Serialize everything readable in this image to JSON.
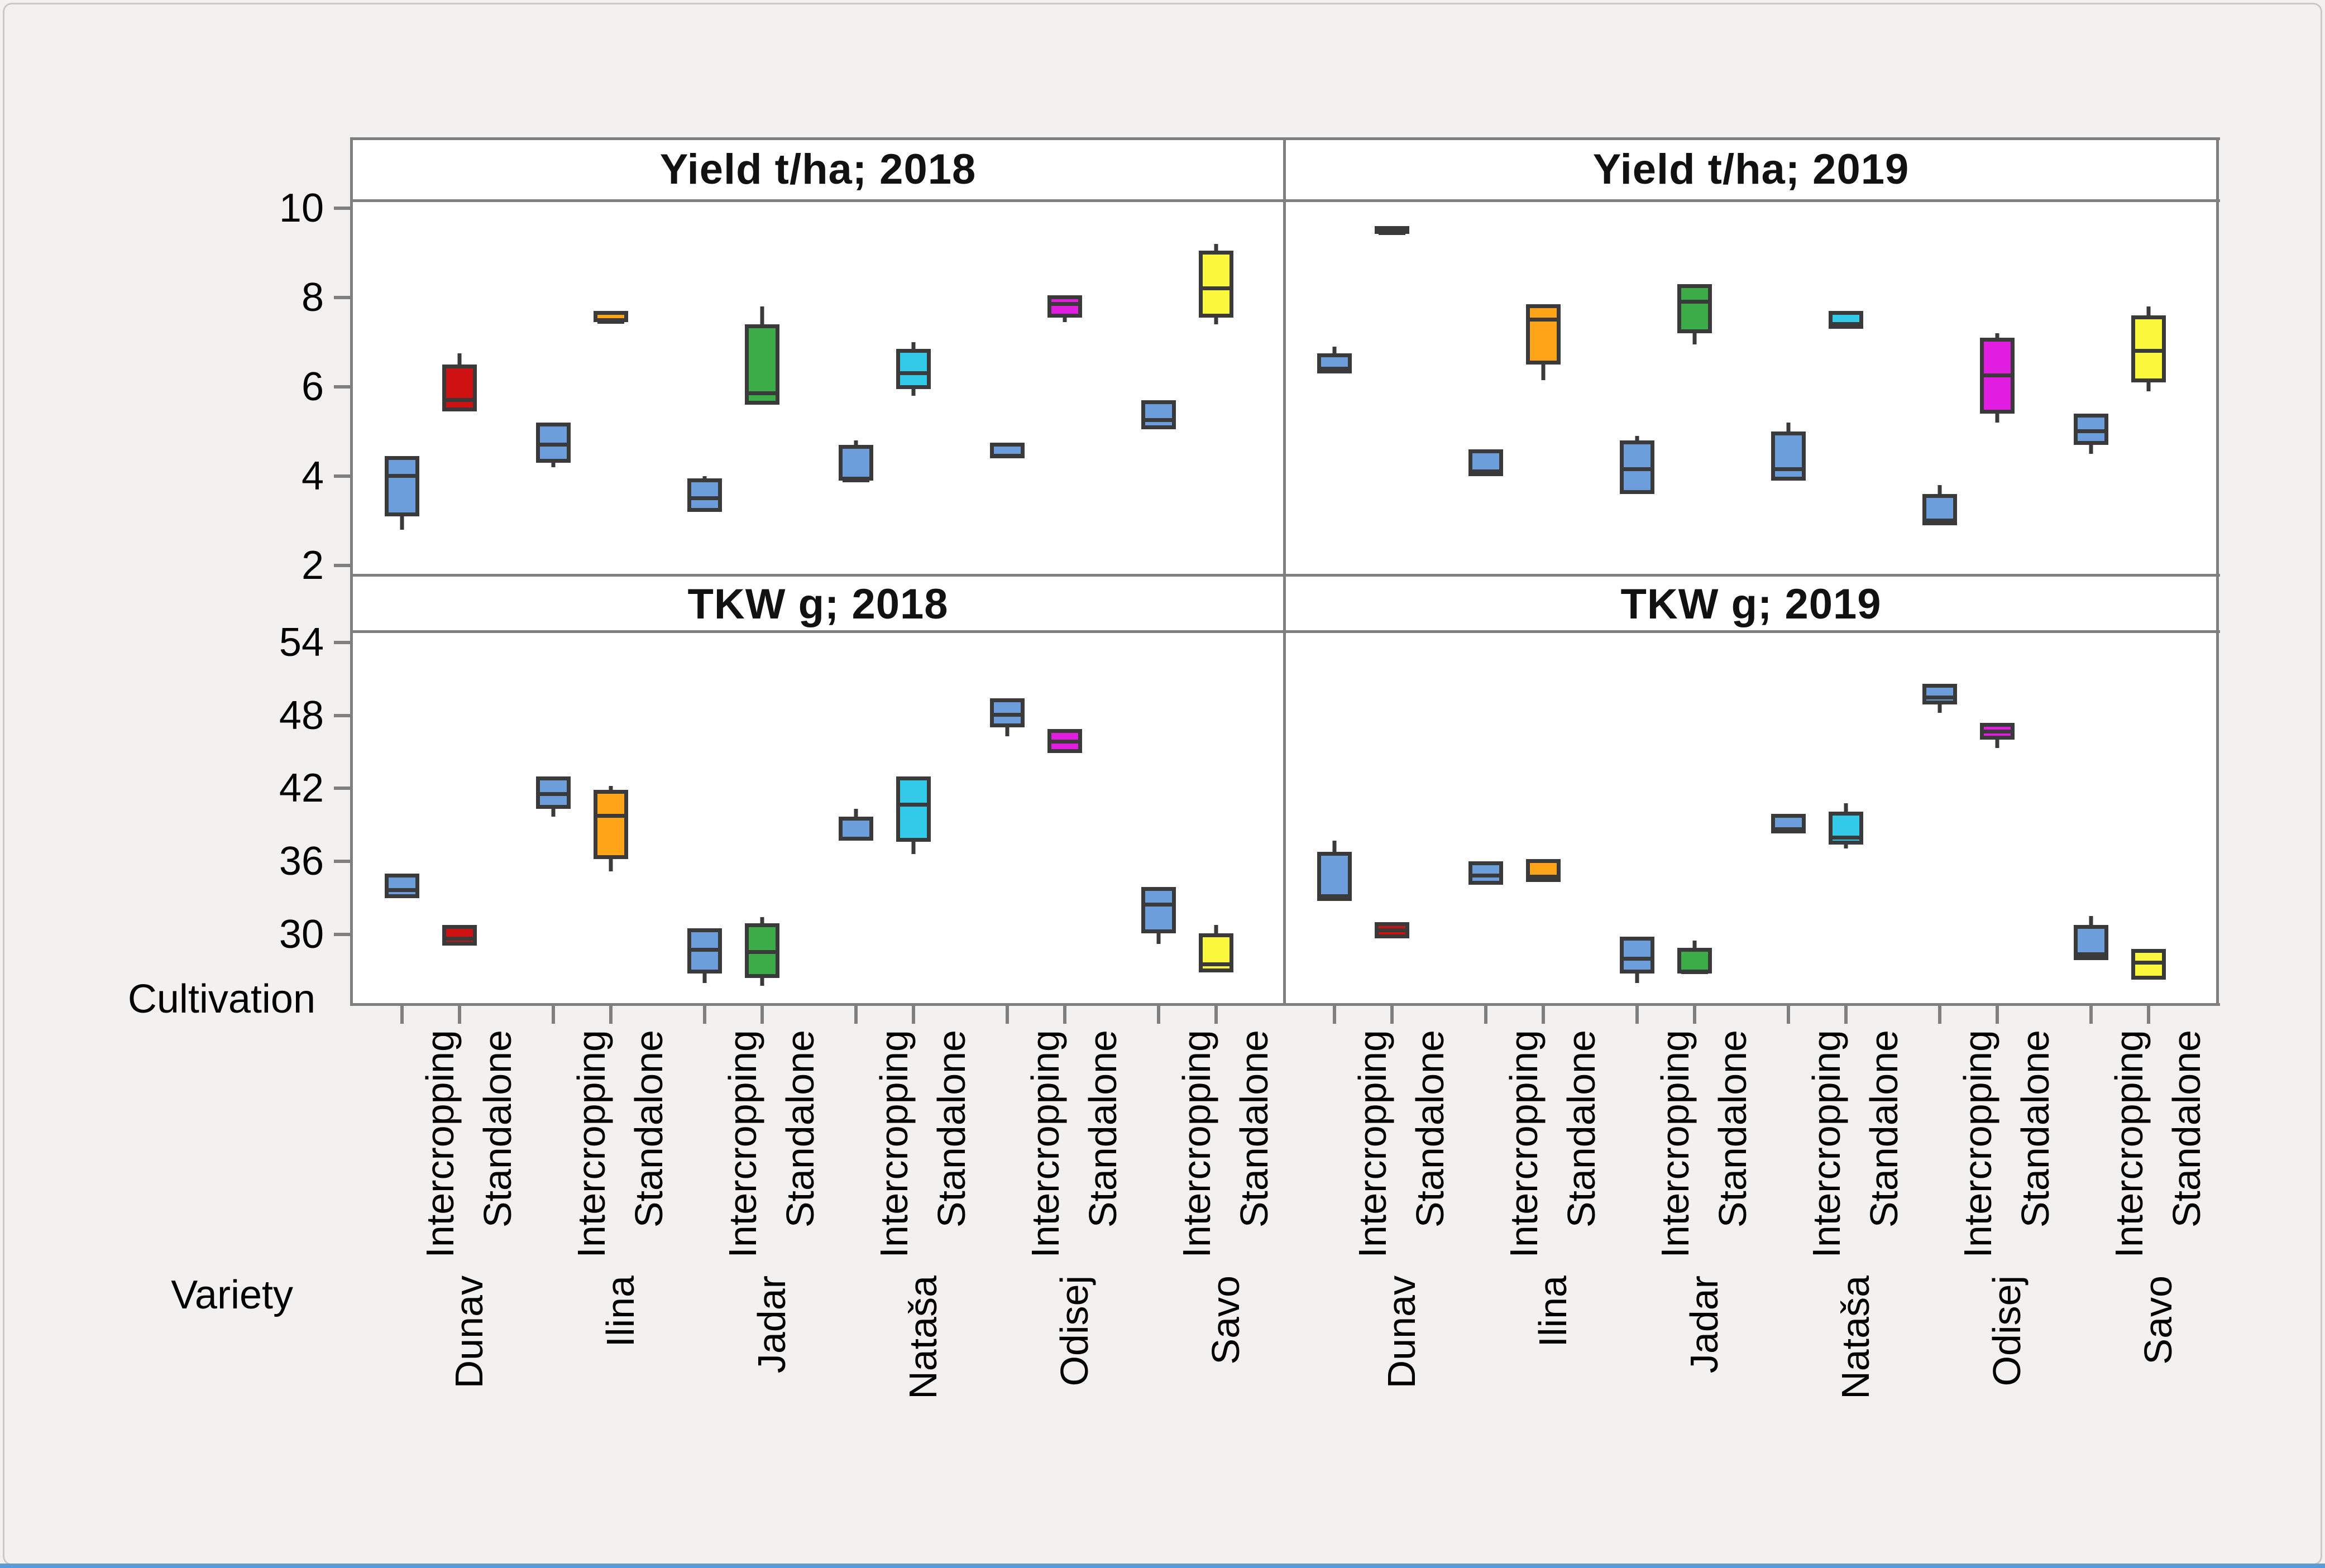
{
  "figure": {
    "background": "#f2f1ef",
    "plot_background": "#ffffff",
    "panel_border_color": "#7f7f7f",
    "box_outline_color": "#3a3a3a",
    "accent_bottom_bar_color": "#5b9bd5"
  },
  "axis": {
    "cultivation_label": "Cultivation",
    "variety_label": "Variety",
    "cultivations": [
      "Intercropping",
      "Standalone"
    ],
    "varieties": [
      "Dunav",
      "Ilina",
      "Jadar",
      "Nataša",
      "Odisej",
      "Savo"
    ],
    "yield_ticks": [
      10,
      8,
      6,
      4,
      2
    ],
    "tkw_ticks": [
      54,
      48,
      42,
      36,
      30
    ]
  },
  "colors": {
    "intercropping": "#6c9edc",
    "dunav": "#ce1212",
    "dunav_flat_dark": "#3a3a3a",
    "ilina": "#ffa319",
    "jadar": "#3bac47",
    "natasa": "#33c9e8",
    "odisej": "#e01de0",
    "savo": "#fbf73c"
  },
  "chart_data": [
    {
      "type": "box",
      "title": "Yield t/ha; 2018",
      "ylabel": "Yield t/ha",
      "year": "2018",
      "ylim": [
        1.76,
        10.15
      ],
      "grid": false,
      "items": [
        {
          "variety": "Dunav",
          "cultivation": "Intercropping",
          "color": "#6c9edc",
          "lo": 2.8,
          "q1": 3.1,
          "med": 4.1,
          "q3": 4.45,
          "hi": 4.45
        },
        {
          "variety": "Dunav",
          "cultivation": "Standalone",
          "color": "#ce1212",
          "lo": 5.45,
          "q1": 5.45,
          "med": 5.8,
          "q3": 6.5,
          "hi": 6.75
        },
        {
          "variety": "Ilina",
          "cultivation": "Intercropping",
          "color": "#6c9edc",
          "lo": 4.2,
          "q1": 4.3,
          "med": 4.8,
          "q3": 5.2,
          "hi": 5.2
        },
        {
          "variety": "Ilina",
          "cultivation": "Standalone",
          "color": "#ffa319",
          "lo": 7.45,
          "q1": 7.45,
          "med": 7.55,
          "q3": 7.7,
          "hi": 7.7
        },
        {
          "variety": "Jadar",
          "cultivation": "Intercropping",
          "color": "#6c9edc",
          "lo": 3.2,
          "q1": 3.2,
          "med": 3.6,
          "q3": 3.95,
          "hi": 4.0
        },
        {
          "variety": "Jadar",
          "cultivation": "Standalone",
          "color": "#3bac47",
          "lo": 5.6,
          "q1": 5.6,
          "med": 5.95,
          "q3": 7.4,
          "hi": 7.8
        },
        {
          "variety": "Nataša",
          "cultivation": "Intercropping",
          "color": "#6c9edc",
          "lo": 3.9,
          "q1": 3.9,
          "med": 4.0,
          "q3": 4.7,
          "hi": 4.8
        },
        {
          "variety": "Nataša",
          "cultivation": "Standalone",
          "color": "#33c9e8",
          "lo": 5.8,
          "q1": 5.95,
          "med": 6.4,
          "q3": 6.85,
          "hi": 7.0
        },
        {
          "variety": "Odisej",
          "cultivation": "Intercropping",
          "color": "#6c9edc",
          "lo": 4.4,
          "q1": 4.4,
          "med": 4.55,
          "q3": 4.75,
          "hi": 4.75
        },
        {
          "variety": "Odisej",
          "cultivation": "Standalone",
          "color": "#e01de0",
          "lo": 7.45,
          "q1": 7.55,
          "med": 7.95,
          "q3": 8.05,
          "hi": 8.05
        },
        {
          "variety": "Savo",
          "cultivation": "Intercropping",
          "color": "#6c9edc",
          "lo": 5.05,
          "q1": 5.05,
          "med": 5.35,
          "q3": 5.7,
          "hi": 5.7
        },
        {
          "variety": "Savo",
          "cultivation": "Standalone",
          "color": "#fbf73c",
          "lo": 7.4,
          "q1": 7.55,
          "med": 8.3,
          "q3": 9.05,
          "hi": 9.2
        }
      ]
    },
    {
      "type": "box",
      "title": "Yield t/ha; 2019",
      "ylabel": "Yield t/ha",
      "year": "2019",
      "ylim": [
        1.76,
        10.15
      ],
      "grid": false,
      "items": [
        {
          "variety": "Dunav",
          "cultivation": "Intercropping",
          "color": "#6c9edc",
          "lo": 6.3,
          "q1": 6.3,
          "med": 6.5,
          "q3": 6.75,
          "hi": 6.9
        },
        {
          "variety": "Dunav",
          "cultivation": "Standalone",
          "color": "#3a3a3a",
          "lo": 9.45,
          "q1": 9.45,
          "med": 9.52,
          "q3": 9.6,
          "hi": 9.6
        },
        {
          "variety": "Ilina",
          "cultivation": "Intercropping",
          "color": "#6c9edc",
          "lo": 4.0,
          "q1": 4.0,
          "med": 4.2,
          "q3": 4.6,
          "hi": 4.6
        },
        {
          "variety": "Ilina",
          "cultivation": "Standalone",
          "color": "#ffa319",
          "lo": 6.15,
          "q1": 6.5,
          "med": 7.6,
          "q3": 7.85,
          "hi": 7.85
        },
        {
          "variety": "Jadar",
          "cultivation": "Intercropping",
          "color": "#6c9edc",
          "lo": 3.6,
          "q1": 3.6,
          "med": 4.25,
          "q3": 4.8,
          "hi": 4.9
        },
        {
          "variety": "Jadar",
          "cultivation": "Standalone",
          "color": "#3bac47",
          "lo": 6.95,
          "q1": 7.2,
          "med": 8.0,
          "q3": 8.3,
          "hi": 8.3
        },
        {
          "variety": "Nataša",
          "cultivation": "Intercropping",
          "color": "#6c9edc",
          "lo": 3.9,
          "q1": 3.9,
          "med": 4.25,
          "q3": 5.0,
          "hi": 5.2
        },
        {
          "variety": "Nataša",
          "cultivation": "Standalone",
          "color": "#33c9e8",
          "lo": 7.3,
          "q1": 7.3,
          "med": 7.5,
          "q3": 7.7,
          "hi": 7.7
        },
        {
          "variety": "Odisej",
          "cultivation": "Intercropping",
          "color": "#6c9edc",
          "lo": 2.9,
          "q1": 2.9,
          "med": 3.1,
          "q3": 3.6,
          "hi": 3.8
        },
        {
          "variety": "Odisej",
          "cultivation": "Standalone",
          "color": "#e01de0",
          "lo": 5.2,
          "q1": 5.4,
          "med": 6.35,
          "q3": 7.1,
          "hi": 7.2
        },
        {
          "variety": "Savo",
          "cultivation": "Intercropping",
          "color": "#6c9edc",
          "lo": 4.5,
          "q1": 4.7,
          "med": 5.1,
          "q3": 5.4,
          "hi": 5.4
        },
        {
          "variety": "Savo",
          "cultivation": "Standalone",
          "color": "#fbf73c",
          "lo": 5.9,
          "q1": 6.1,
          "med": 6.9,
          "q3": 7.6,
          "hi": 7.8
        }
      ]
    },
    {
      "type": "box",
      "title": "TKW g; 2018",
      "ylabel": "TKW g",
      "year": "2018",
      "ylim": [
        24.2,
        54.8
      ],
      "grid": false,
      "items": [
        {
          "variety": "Dunav",
          "cultivation": "Intercropping",
          "color": "#6c9edc",
          "lo": 33.0,
          "q1": 33.0,
          "med": 34.0,
          "q3": 35.0,
          "hi": 35.0
        },
        {
          "variety": "Dunav",
          "cultivation": "Standalone",
          "color": "#ce1212",
          "lo": 29.1,
          "q1": 29.1,
          "med": 30.0,
          "q3": 30.8,
          "hi": 30.8
        },
        {
          "variety": "Ilina",
          "cultivation": "Intercropping",
          "color": "#6c9edc",
          "lo": 39.7,
          "q1": 40.3,
          "med": 41.9,
          "q3": 43.0,
          "hi": 43.0
        },
        {
          "variety": "Ilina",
          "cultivation": "Standalone",
          "color": "#ffa319",
          "lo": 35.2,
          "q1": 36.2,
          "med": 40.1,
          "q3": 41.9,
          "hi": 42.2
        },
        {
          "variety": "Jadar",
          "cultivation": "Intercropping",
          "color": "#6c9edc",
          "lo": 26.0,
          "q1": 26.8,
          "med": 29.1,
          "q3": 30.5,
          "hi": 30.5
        },
        {
          "variety": "Jadar",
          "cultivation": "Standalone",
          "color": "#3bac47",
          "lo": 25.8,
          "q1": 26.4,
          "med": 28.9,
          "q3": 30.9,
          "hi": 31.4
        },
        {
          "variety": "Nataša",
          "cultivation": "Intercropping",
          "color": "#6c9edc",
          "lo": 37.7,
          "q1": 37.7,
          "med": 38.2,
          "q3": 39.7,
          "hi": 40.3
        },
        {
          "variety": "Nataša",
          "cultivation": "Standalone",
          "color": "#33c9e8",
          "lo": 36.6,
          "q1": 37.6,
          "med": 41.0,
          "q3": 43.0,
          "hi": 43.0
        },
        {
          "variety": "Odisej",
          "cultivation": "Intercropping",
          "color": "#6c9edc",
          "lo": 46.3,
          "q1": 47.0,
          "med": 48.4,
          "q3": 49.4,
          "hi": 49.4
        },
        {
          "variety": "Odisej",
          "cultivation": "Standalone",
          "color": "#e01de0",
          "lo": 44.9,
          "q1": 44.9,
          "med": 46.2,
          "q3": 46.9,
          "hi": 46.9
        },
        {
          "variety": "Savo",
          "cultivation": "Intercropping",
          "color": "#6c9edc",
          "lo": 29.2,
          "q1": 30.1,
          "med": 32.8,
          "q3": 33.9,
          "hi": 33.9
        },
        {
          "variety": "Savo",
          "cultivation": "Standalone",
          "color": "#fbf73c",
          "lo": 26.9,
          "q1": 26.9,
          "med": 27.9,
          "q3": 30.1,
          "hi": 30.8
        }
      ]
    },
    {
      "type": "box",
      "title": "TKW g; 2019",
      "ylabel": "TKW g",
      "year": "2019",
      "ylim": [
        24.2,
        54.8
      ],
      "grid": false,
      "items": [
        {
          "variety": "Dunav",
          "cultivation": "Intercropping",
          "color": "#6c9edc",
          "lo": 32.75,
          "q1": 32.75,
          "med": 33.5,
          "q3": 36.8,
          "hi": 37.7
        },
        {
          "variety": "Dunav",
          "cultivation": "Standalone",
          "color": "#ce1212",
          "lo": 29.7,
          "q1": 29.7,
          "med": 30.7,
          "q3": 31.0,
          "hi": 31.0
        },
        {
          "variety": "Ilina",
          "cultivation": "Intercropping",
          "color": "#6c9edc",
          "lo": 34.1,
          "q1": 34.1,
          "med": 35.2,
          "q3": 36.0,
          "hi": 36.0
        },
        {
          "variety": "Ilina",
          "cultivation": "Standalone",
          "color": "#ffa319",
          "lo": 34.3,
          "q1": 34.3,
          "med": 35.1,
          "q3": 36.2,
          "hi": 36.2
        },
        {
          "variety": "Jadar",
          "cultivation": "Intercropping",
          "color": "#6c9edc",
          "lo": 26.0,
          "q1": 26.8,
          "med": 28.35,
          "q3": 29.8,
          "hi": 29.8
        },
        {
          "variety": "Jadar",
          "cultivation": "Standalone",
          "color": "#3bac47",
          "lo": 26.8,
          "q1": 26.8,
          "med": 27.25,
          "q3": 28.9,
          "hi": 29.5
        },
        {
          "variety": "Nataša",
          "cultivation": "Intercropping",
          "color": "#6c9edc",
          "lo": 38.3,
          "q1": 38.3,
          "med": 39.0,
          "q3": 39.9,
          "hi": 39.9
        },
        {
          "variety": "Nataša",
          "cultivation": "Standalone",
          "color": "#33c9e8",
          "lo": 37.05,
          "q1": 37.4,
          "med": 38.3,
          "q3": 40.1,
          "hi": 40.8
        },
        {
          "variety": "Odisej",
          "cultivation": "Intercropping",
          "color": "#6c9edc",
          "lo": 48.2,
          "q1": 48.9,
          "med": 49.8,
          "q3": 50.6,
          "hi": 50.6
        },
        {
          "variety": "Odisej",
          "cultivation": "Standalone",
          "color": "#e01de0",
          "lo": 45.3,
          "q1": 46.0,
          "med": 47.0,
          "q3": 47.4,
          "hi": 47.4
        },
        {
          "variety": "Savo",
          "cultivation": "Intercropping",
          "color": "#6c9edc",
          "lo": 27.9,
          "q1": 27.9,
          "med": 28.7,
          "q3": 30.8,
          "hi": 31.5
        },
        {
          "variety": "Savo",
          "cultivation": "Standalone",
          "color": "#fbf73c",
          "lo": 26.3,
          "q1": 26.3,
          "med": 28.05,
          "q3": 28.8,
          "hi": 28.8
        }
      ]
    }
  ]
}
